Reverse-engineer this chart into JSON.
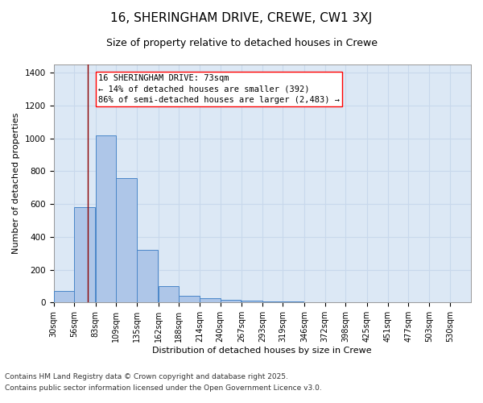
{
  "title": "16, SHERINGHAM DRIVE, CREWE, CW1 3XJ",
  "subtitle": "Size of property relative to detached houses in Crewe",
  "xlabel": "Distribution of detached houses by size in Crewe",
  "ylabel": "Number of detached properties",
  "footnote1": "Contains HM Land Registry data © Crown copyright and database right 2025.",
  "footnote2": "Contains public sector information licensed under the Open Government Licence v3.0.",
  "annotation_line1": "16 SHERINGHAM DRIVE: 73sqm",
  "annotation_line2": "← 14% of detached houses are smaller (392)",
  "annotation_line3": "86% of semi-detached houses are larger (2,483) →",
  "bar_bins": [
    30,
    56,
    83,
    109,
    135,
    162,
    188,
    214,
    240,
    267,
    293,
    319,
    346,
    372,
    398,
    425,
    451,
    477,
    503,
    530,
    556
  ],
  "bar_heights": [
    70,
    580,
    1020,
    760,
    320,
    100,
    40,
    25,
    15,
    10,
    5,
    5,
    3,
    2,
    2,
    2,
    1,
    1,
    1,
    1
  ],
  "bar_color": "#aec6e8",
  "bar_edge_color": "#4a86c8",
  "grid_color": "#c8d8ec",
  "bg_color": "#dce8f5",
  "red_line_x": 73,
  "ylim": [
    0,
    1450
  ],
  "title_fontsize": 11,
  "subtitle_fontsize": 9,
  "label_fontsize": 8,
  "tick_fontsize": 7,
  "annotation_fontsize": 7.5,
  "footnote_fontsize": 6.5
}
